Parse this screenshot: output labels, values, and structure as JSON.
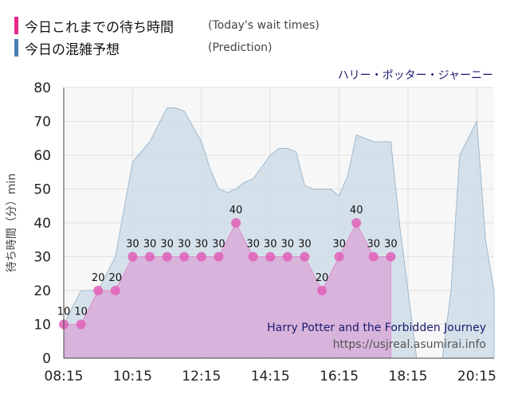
{
  "legend": {
    "today_label": "今日これまでの待ち時間",
    "today_sub": "(Today's wait times)",
    "today_color": "#e8288a",
    "pred_label": "今日の混雑予想",
    "pred_sub": "(Prediction)",
    "pred_color": "#4a80b0"
  },
  "ride_name_jp": "ハリー・ポッター・ジャーニー",
  "ride_name_en": "Harry Potter and the Forbidden Journey",
  "site": "https://usjreal.asumirai.info",
  "chart_data": {
    "type": "area",
    "ylabel": "待ち時間（分）min",
    "ylim": [
      0,
      80
    ],
    "yticks": [
      0,
      10,
      20,
      30,
      40,
      50,
      60,
      70,
      80
    ],
    "xlim": [
      "08:15",
      "20:45"
    ],
    "xticks": [
      "08:15",
      "10:15",
      "12:15",
      "14:15",
      "16:15",
      "18:15",
      "20:15"
    ],
    "grid": true,
    "series": [
      {
        "name": "今日の混雑予想",
        "x": [
          "08:15",
          "08:45",
          "09:15",
          "09:45",
          "10:15",
          "10:45",
          "11:15",
          "11:30",
          "11:45",
          "12:15",
          "12:30",
          "12:45",
          "13:00",
          "13:15",
          "13:30",
          "13:45",
          "14:15",
          "14:30",
          "14:45",
          "15:00",
          "15:15",
          "15:30",
          "15:45",
          "16:00",
          "16:15",
          "16:30",
          "16:45",
          "17:00",
          "17:15",
          "17:30",
          "17:45",
          "18:00",
          "18:15",
          "18:30",
          "19:15",
          "19:30",
          "19:45",
          "20:00",
          "20:15",
          "20:30",
          "20:45"
        ],
        "values": [
          10,
          20,
          20,
          30,
          58,
          64,
          74,
          74,
          73,
          64,
          56,
          50,
          49,
          50,
          52,
          53,
          60,
          62,
          62,
          61,
          51,
          50,
          50,
          50,
          48,
          54,
          66,
          65,
          64,
          64,
          64,
          40,
          20,
          0,
          0,
          20,
          60,
          65,
          70,
          35,
          20
        ]
      },
      {
        "name": "今日これまでの待ち時間",
        "x": [
          "08:15",
          "08:45",
          "09:15",
          "09:45",
          "10:15",
          "10:45",
          "11:15",
          "11:45",
          "12:15",
          "12:45",
          "13:15",
          "13:45",
          "14:15",
          "14:45",
          "15:15",
          "15:45",
          "16:15",
          "16:45",
          "17:15",
          "17:45"
        ],
        "values": [
          10,
          10,
          20,
          20,
          30,
          30,
          30,
          30,
          30,
          30,
          40,
          30,
          30,
          30,
          30,
          20,
          30,
          40,
          30,
          30
        ]
      }
    ]
  }
}
